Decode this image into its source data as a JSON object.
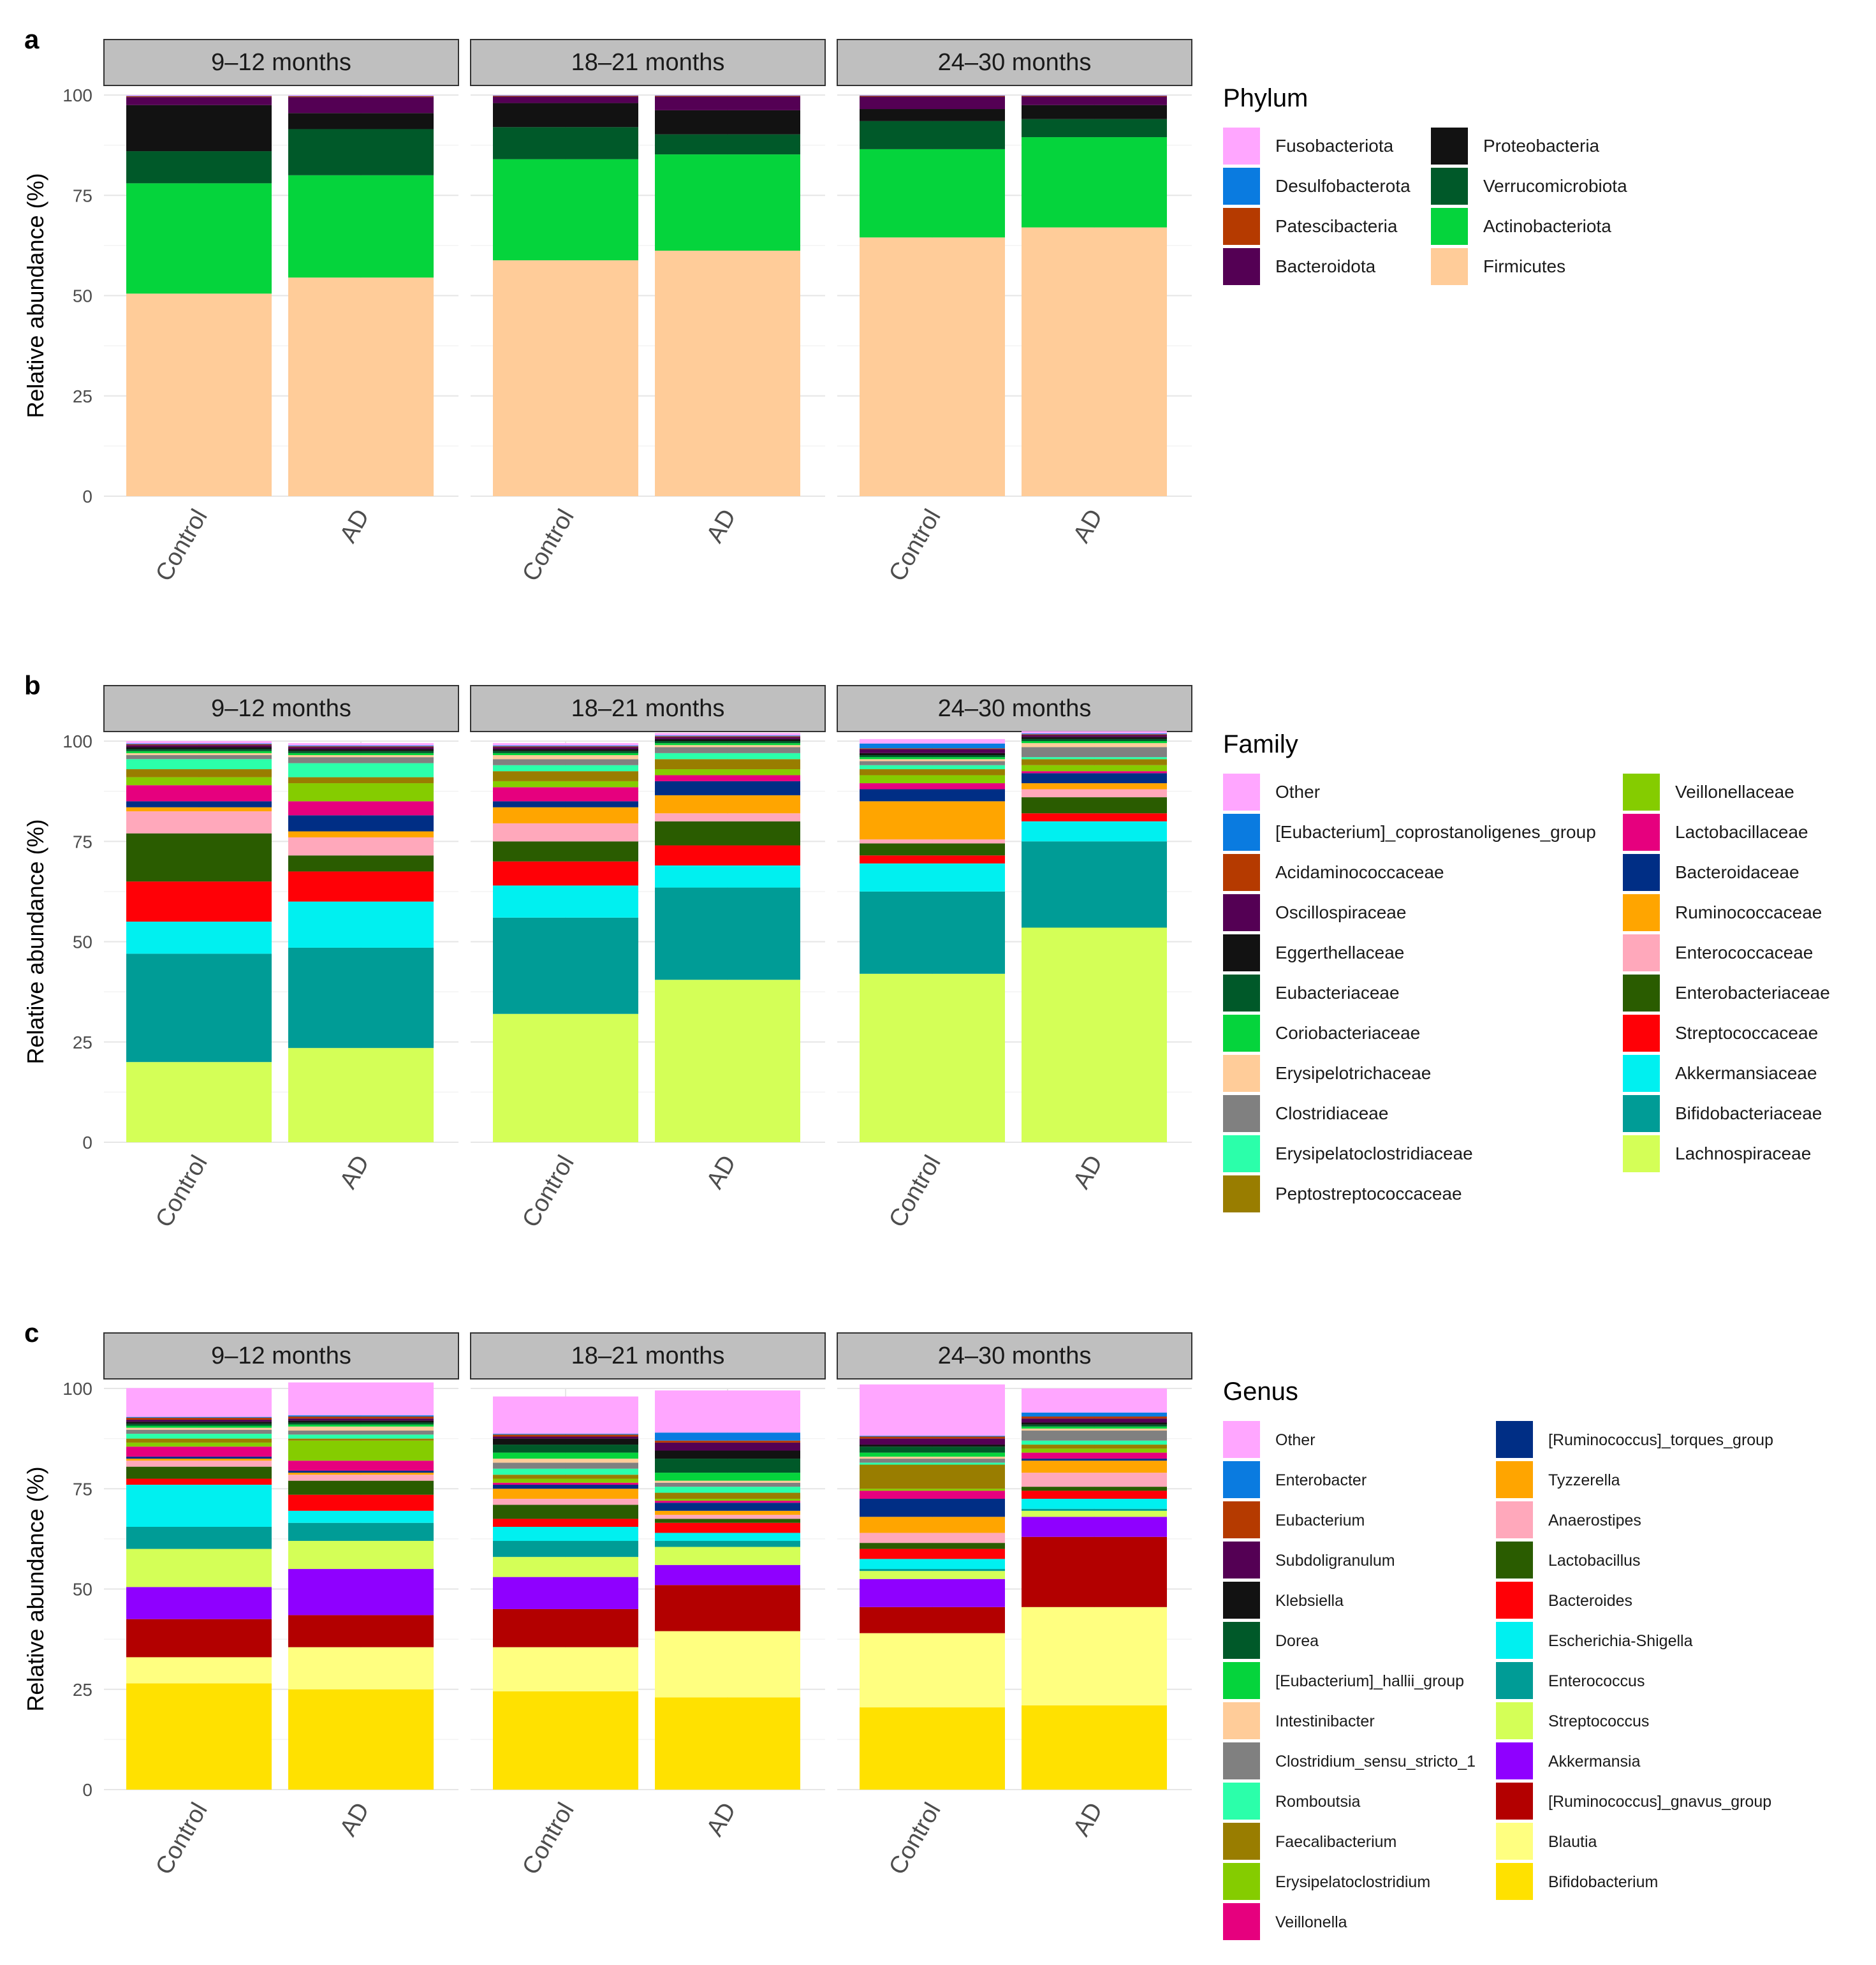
{
  "groups": [
    "Control",
    "AD"
  ],
  "facets": [
    "9–12 months",
    "18–21 months",
    "24–30 months"
  ],
  "ylabel": "Relative abundance (%)",
  "yticks": [
    0,
    25,
    50,
    75,
    100
  ],
  "chart_data": [
    {
      "type": "stacked-bar",
      "panel": "a",
      "legend_title": "Phylum",
      "stack_order": [
        "Firmicutes",
        "Actinobacteriota",
        "Verrucomicrobiota",
        "Proteobacteria",
        "Bacteroidota",
        "Patescibacteria",
        "Desulfobacterota",
        "Fusobacteriota"
      ],
      "legend_columns": [
        [
          "Fusobacteriota",
          "Desulfobacterota",
          "Patescibacteria",
          "Bacteroidota"
        ],
        [
          "Proteobacteria",
          "Verrucomicrobiota",
          "Actinobacteriota",
          "Firmicutes"
        ]
      ],
      "colors": {
        "Fusobacteriota": "#FFA6FF",
        "Desulfobacterota": "#0A7BE0",
        "Patescibacteria": "#B53A00",
        "Bacteroidota": "#540054",
        "Proteobacteria": "#121212",
        "Verrucomicrobiota": "#005929",
        "Actinobacteriota": "#05D43C",
        "Firmicutes": "#FFCC99"
      },
      "bars": [
        {
          "facet": 0,
          "group": 0,
          "values": [
            50.5,
            27.5,
            8,
            11.5,
            2,
            0.2,
            0.1,
            0.2
          ]
        },
        {
          "facet": 0,
          "group": 1,
          "values": [
            54.5,
            25.5,
            11.5,
            4,
            4,
            0.2,
            0.1,
            0.2
          ]
        },
        {
          "facet": 1,
          "group": 0,
          "values": [
            58.8,
            25.2,
            8,
            6,
            1.6,
            0.2,
            0.1,
            0.1
          ]
        },
        {
          "facet": 1,
          "group": 1,
          "values": [
            61.2,
            24,
            5,
            6,
            3.4,
            0.2,
            0.1,
            0.1
          ]
        },
        {
          "facet": 2,
          "group": 0,
          "values": [
            64.5,
            22,
            7,
            3,
            3.1,
            0.2,
            0.1,
            0.1
          ]
        },
        {
          "facet": 2,
          "group": 1,
          "values": [
            67,
            22.5,
            4.5,
            3.5,
            2.1,
            0.2,
            0.1,
            0.1
          ]
        }
      ]
    },
    {
      "type": "stacked-bar",
      "panel": "b",
      "legend_title": "Family",
      "stack_order": [
        "Lachnospiraceae",
        "Bifidobacteriaceae",
        "Akkermansiaceae",
        "Streptococcaceae",
        "Enterobacteriaceae",
        "Enterococcaceae",
        "Ruminococcaceae",
        "Bacteroidaceae",
        "Lactobacillaceae",
        "Veillonellaceae",
        "Peptostreptococcaceae",
        "Erysipelatoclostridiaceae",
        "Clostridiaceae",
        "Erysipelotrichaceae",
        "Coriobacteriaceae",
        "Eubacteriaceae",
        "Eggerthellaceae",
        "Oscillospiraceae",
        "Acidaminococcaceae",
        "[Eubacterium]_coprostanoligenes_group",
        "Other"
      ],
      "legend_columns": [
        [
          "Other",
          "[Eubacterium]_coprostanoligenes_group",
          "Acidaminococcaceae",
          "Oscillospiraceae",
          "Eggerthellaceae",
          "Eubacteriaceae",
          "Coriobacteriaceae",
          "Erysipelotrichaceae",
          "Clostridiaceae",
          "Erysipelatoclostridiaceae",
          "Peptostreptococcaceae"
        ],
        [
          "Veillonellaceae",
          "Lactobacillaceae",
          "Bacteroidaceae",
          "Ruminococcaceae",
          "Enterococcaceae",
          "Enterobacteriaceae",
          "Streptococcaceae",
          "Akkermansiaceae",
          "Bifidobacteriaceae",
          "Lachnospiraceae"
        ]
      ],
      "colors": {
        "Other": "#FFA6FF",
        "[Eubacterium]_coprostanoligenes_group": "#0A7BE0",
        "Acidaminococcaceae": "#B53A00",
        "Oscillospiraceae": "#540054",
        "Eggerthellaceae": "#121212",
        "Eubacteriaceae": "#005929",
        "Coriobacteriaceae": "#05D43C",
        "Erysipelotrichaceae": "#FFCC99",
        "Clostridiaceae": "#808080",
        "Erysipelatoclostridiaceae": "#2BFFAA",
        "Peptostreptococcaceae": "#997D00",
        "Veillonellaceae": "#85CC00",
        "Lactobacillaceae": "#E6007E",
        "Bacteroidaceae": "#002E85",
        "Ruminococcaceae": "#FFA500",
        "Enterococcaceae": "#FFA8BB",
        "Enterobacteriaceae": "#2A5C00",
        "Streptococcaceae": "#FF0006",
        "Akkermansiaceae": "#00F0F0",
        "Bifidobacteriaceae": "#009C96",
        "Lachnospiraceae": "#D4FF57"
      },
      "bars": [
        {
          "facet": 0,
          "group": 0,
          "values": [
            20,
            27,
            8,
            10,
            12,
            5.5,
            1,
            1.5,
            4,
            2,
            2,
            2.5,
            1,
            0.5,
            0.5,
            0.5,
            0.5,
            0.5,
            0.2,
            0.2,
            0.6
          ]
        },
        {
          "facet": 0,
          "group": 1,
          "values": [
            23.5,
            25,
            11.5,
            7.5,
            4,
            4.5,
            1.5,
            4,
            3.5,
            4.5,
            1.5,
            3.5,
            1.5,
            0.5,
            0.5,
            0.5,
            0.5,
            0.5,
            0.2,
            0.2,
            0.6
          ]
        },
        {
          "facet": 1,
          "group": 0,
          "values": [
            32,
            24,
            8,
            6,
            5,
            4.5,
            4,
            1.5,
            3.5,
            1.5,
            2.5,
            1.5,
            1.5,
            1,
            0.5,
            0.5,
            0.5,
            0.5,
            0.2,
            0.2,
            0.6
          ]
        },
        {
          "facet": 1,
          "group": 1,
          "values": [
            40.5,
            23,
            5.5,
            5,
            6,
            2,
            4.5,
            3.5,
            1.5,
            1.5,
            2.5,
            1.5,
            1.5,
            0.5,
            0.5,
            0.5,
            0.5,
            0.5,
            0.2,
            0.2,
            0.6
          ]
        },
        {
          "facet": 2,
          "group": 0,
          "values": [
            42,
            20.5,
            7,
            2,
            3,
            1,
            9.5,
            3,
            1.5,
            2,
            1.5,
            1,
            1,
            0.5,
            0.5,
            0.5,
            0.5,
            1,
            0.2,
            1.2,
            1.1
          ]
        },
        {
          "facet": 2,
          "group": 1,
          "values": [
            53.5,
            21.5,
            5,
            2,
            4,
            2,
            1.5,
            2.5,
            0.5,
            1.5,
            1.5,
            0.5,
            2.5,
            1,
            0.5,
            0.5,
            0.5,
            0.5,
            0.2,
            0.2,
            0.6
          ]
        }
      ]
    },
    {
      "type": "stacked-bar",
      "panel": "c",
      "legend_title": "Genus",
      "stack_order": [
        "Bifidobacterium",
        "Blautia",
        "[Ruminococcus]_gnavus_group",
        "Akkermansia",
        "Streptococcus",
        "Enterococcus",
        "Escherichia-Shigella",
        "Bacteroides",
        "Lactobacillus",
        "Anaerostipes",
        "Tyzzerella",
        "[Ruminococcus]_torques_group",
        "Veillonella",
        "Erysipelatoclostridium",
        "Faecalibacterium",
        "Romboutsia",
        "Clostridium_sensu_stricto_1",
        "Intestinibacter",
        "[Eubacterium]_hallii_group",
        "Dorea",
        "Klebsiella",
        "Subdoligranulum",
        "Eubacterium",
        "Enterobacter",
        "Other"
      ],
      "legend_columns": [
        [
          "Other",
          "Enterobacter",
          "Eubacterium",
          "Subdoligranulum",
          "Klebsiella",
          "Dorea",
          "[Eubacterium]_hallii_group",
          "Intestinibacter",
          "Clostridium_sensu_stricto_1",
          "Romboutsia",
          "Faecalibacterium",
          "Erysipelatoclostridium",
          "Veillonella"
        ],
        [
          "[Ruminococcus]_torques_group",
          "Tyzzerella",
          "Anaerostipes",
          "Lactobacillus",
          "Bacteroides",
          "Escherichia-Shigella",
          "Enterococcus",
          "Streptococcus",
          "Akkermansia",
          "[Ruminococcus]_gnavus_group",
          "Blautia",
          "Bifidobacterium"
        ]
      ],
      "colors": {
        "Other": "#FFA6FF",
        "Enterobacter": "#0A7BE0",
        "Eubacterium": "#B53A00",
        "Subdoligranulum": "#540054",
        "Klebsiella": "#121212",
        "Dorea": "#005929",
        "[Eubacterium]_hallii_group": "#05D43C",
        "Intestinibacter": "#FFCC99",
        "Clostridium_sensu_stricto_1": "#808080",
        "Romboutsia": "#2BFFAA",
        "Faecalibacterium": "#997D00",
        "Erysipelatoclostridium": "#85CC00",
        "Veillonella": "#E6007E",
        "[Ruminococcus]_torques_group": "#002E85",
        "Tyzzerella": "#FFA500",
        "Anaerostipes": "#FFA8BB",
        "Lactobacillus": "#2A5C00",
        "Bacteroides": "#FF0006",
        "Escherichia-Shigella": "#00F0F0",
        "Enterococcus": "#009C96",
        "Streptococcus": "#D4FF57",
        "Akkermansia": "#8F00FF",
        "[Ruminococcus]_gnavus_group": "#B30000",
        "Blautia": "#FFFF80",
        "Bifidobacterium": "#FFE100"
      },
      "bars": [
        {
          "facet": 0,
          "group": 0,
          "values": [
            26.5,
            6.5,
            9.5,
            8,
            9.5,
            5.5,
            10.5,
            1.5,
            3,
            1.5,
            0.5,
            0.5,
            2.5,
            1,
            1,
            1.2,
            1,
            0.5,
            0.5,
            0.5,
            0.5,
            0.5,
            0.5,
            0.2,
            7.2
          ]
        },
        {
          "facet": 0,
          "group": 1,
          "values": [
            25,
            10.5,
            8,
            11.5,
            7,
            4.5,
            3,
            4,
            3.5,
            1.5,
            0.5,
            0.5,
            2.5,
            5,
            0.5,
            1,
            1,
            1,
            0.5,
            0.5,
            0.5,
            0.5,
            0.5,
            0.3,
            8.2
          ]
        },
        {
          "facet": 1,
          "group": 0,
          "values": [
            24.5,
            11,
            9.5,
            8,
            5,
            4,
            3.5,
            2,
            3.5,
            1.5,
            2.5,
            1,
            0.5,
            1,
            1,
            1.5,
            1.5,
            1,
            1.5,
            2,
            1.5,
            0.5,
            0.5,
            0.2,
            9.3
          ]
        },
        {
          "facet": 1,
          "group": 1,
          "values": [
            23,
            16.5,
            11.5,
            5,
            4.5,
            1.5,
            2,
            2.5,
            1,
            1,
            1,
            2,
            0.5,
            0.5,
            1.5,
            1.5,
            1,
            0.5,
            2,
            3.5,
            2,
            2,
            0.5,
            2,
            10.5
          ]
        },
        {
          "facet": 2,
          "group": 0,
          "values": [
            20.5,
            18.5,
            6.5,
            7,
            2,
            0.5,
            2.5,
            2.5,
            1.5,
            2.5,
            4,
            4.5,
            2,
            0.5,
            6,
            0.5,
            1,
            0.5,
            1,
            1.5,
            0.5,
            1.5,
            0.5,
            0.2,
            12.8
          ]
        },
        {
          "facet": 2,
          "group": 1,
          "values": [
            21,
            24.5,
            17.5,
            5,
            1.5,
            0.5,
            2.5,
            2,
            1,
            3.5,
            3,
            0.5,
            1.5,
            1,
            1,
            1,
            2.5,
            0.5,
            0.5,
            0.5,
            0.5,
            1,
            0.5,
            1,
            6
          ]
        }
      ]
    }
  ]
}
